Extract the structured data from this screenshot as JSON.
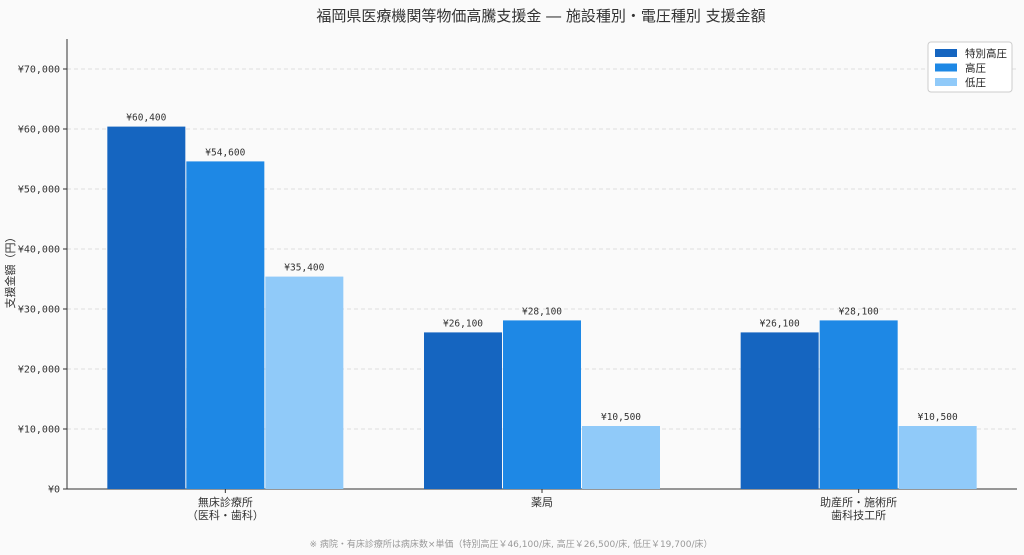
{
  "chart_data": {
    "type": "bar",
    "title": "福岡県医療機関等物価高騰支援金 ― 施設種別・電圧種別 支援金額",
    "ylabel": "支援金額（円）",
    "xlabel": "",
    "categories": [
      [
        "無床診療所",
        "（医科・歯科）"
      ],
      [
        "薬局"
      ],
      [
        "助産所・施術所",
        "歯科技工所"
      ]
    ],
    "series": [
      {
        "name": "特別高圧",
        "color": "#1565c0",
        "values": [
          60400,
          26100,
          26100
        ]
      },
      {
        "name": "高圧",
        "color": "#1e88e5",
        "values": [
          54600,
          28100,
          28100
        ]
      },
      {
        "name": "低圧",
        "color": "#90caf9",
        "values": [
          35400,
          10500,
          10500
        ]
      }
    ],
    "ylim": [
      0,
      75000
    ],
    "yticks": [
      0,
      10000,
      20000,
      30000,
      40000,
      50000,
      60000,
      70000
    ],
    "ytick_labels": [
      "¥0",
      "¥10,000",
      "¥20,000",
      "¥30,000",
      "¥40,000",
      "¥50,000",
      "¥60,000",
      "¥70,000"
    ],
    "data_labels": [
      [
        "¥60,400",
        "¥26,100",
        "¥26,100"
      ],
      [
        "¥54,600",
        "¥28,100",
        "¥28,100"
      ],
      [
        "¥35,400",
        "¥10,500",
        "¥10,500"
      ]
    ],
    "grid": true,
    "legend_position": "top-right",
    "footnote": "※ 病院・有床診療所は病床数×単価（特別高圧￥46,100/床, 高圧￥26,500/床, 低圧￥19,700/床）"
  }
}
